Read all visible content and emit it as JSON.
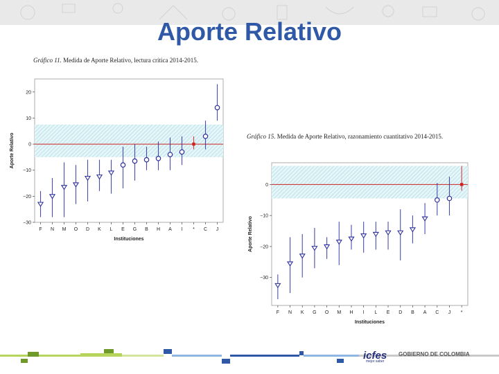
{
  "slide": {
    "title": "Aporte Relativo",
    "footer": {
      "logo_icfes": "icfes",
      "logo_icfes_sub": "mejor saber",
      "logo_gobierno": "GOBIERNO DE COLOMBIA"
    },
    "colors": {
      "title": "#2f59a6",
      "series": "#2b2f9c",
      "reference": "#cc2222",
      "band": "#a9dde6"
    }
  },
  "chart_data": [
    {
      "type": "scatter",
      "caption_italic": "Gráfico 11.",
      "caption_rest": " Medida de Aporte Relativo, lectura crítica 2014-2015.",
      "xlabel": "Instituciones",
      "ylabel": "Aporte Relativo",
      "ylim": [
        -30,
        25
      ],
      "yticks": [
        20,
        10,
        0,
        -10,
        -20,
        -30
      ],
      "band": [
        -5,
        7.5
      ],
      "reference_line": 0,
      "categories": [
        "F",
        "N",
        "M",
        "O",
        "D",
        "K",
        "L",
        "E",
        "G",
        "B",
        "H",
        "A",
        "I",
        "*",
        "C",
        "J"
      ],
      "points": [
        {
          "x": "F",
          "y": -23,
          "low": -28,
          "high": -18,
          "marker": "triangle"
        },
        {
          "x": "N",
          "y": -20,
          "low": -28,
          "high": -13,
          "marker": "triangle"
        },
        {
          "x": "M",
          "y": -16.5,
          "low": -28,
          "high": -7,
          "marker": "triangle"
        },
        {
          "x": "O",
          "y": -15.5,
          "low": -23,
          "high": -8,
          "marker": "triangle"
        },
        {
          "x": "D",
          "y": -13,
          "low": -22,
          "high": -6,
          "marker": "triangle"
        },
        {
          "x": "K",
          "y": -12.5,
          "low": -18,
          "high": -6,
          "marker": "triangle"
        },
        {
          "x": "L",
          "y": -11,
          "low": -19,
          "high": -6,
          "marker": "triangle"
        },
        {
          "x": "E",
          "y": -8,
          "low": -17,
          "high": -1,
          "marker": "circle"
        },
        {
          "x": "G",
          "y": -6.5,
          "low": -14,
          "high": 0,
          "marker": "circle"
        },
        {
          "x": "B",
          "y": -6,
          "low": -10,
          "high": -1,
          "marker": "circle"
        },
        {
          "x": "H",
          "y": -5.5,
          "low": -10,
          "high": 1,
          "marker": "circle"
        },
        {
          "x": "A",
          "y": -4,
          "low": -10,
          "high": 2.5,
          "marker": "circle"
        },
        {
          "x": "I",
          "y": -3,
          "low": -8,
          "high": 3,
          "marker": "circle"
        },
        {
          "x": "*",
          "y": 0,
          "low": -2,
          "high": 3,
          "marker": "square"
        },
        {
          "x": "C",
          "y": 3,
          "low": -2,
          "high": 9,
          "marker": "circle"
        },
        {
          "x": "J",
          "y": 14,
          "low": 9,
          "high": 23,
          "marker": "circle"
        }
      ]
    },
    {
      "type": "scatter",
      "caption_italic": "Gráfico 15.",
      "caption_rest": " Medida de Aporte Relativo, razonamiento cuantitativo 2014-2015.",
      "xlabel": "Instituciones",
      "ylabel": "Aporte Relativo",
      "ylim": [
        -39,
        7
      ],
      "yticks": [
        0,
        -10,
        -20,
        -30
      ],
      "band": [
        -4.5,
        6
      ],
      "reference_line": 0,
      "categories": [
        "F",
        "N",
        "K",
        "G",
        "O",
        "M",
        "H",
        "I",
        "L",
        "E",
        "D",
        "B",
        "A",
        "C",
        "J",
        "*"
      ],
      "points": [
        {
          "x": "F",
          "y": -32.5,
          "low": -37,
          "high": -29,
          "marker": "triangle"
        },
        {
          "x": "N",
          "y": -25.5,
          "low": -35,
          "high": -17,
          "marker": "triangle"
        },
        {
          "x": "K",
          "y": -23,
          "low": -30,
          "high": -16,
          "marker": "triangle"
        },
        {
          "x": "G",
          "y": -20.5,
          "low": -27,
          "high": -14,
          "marker": "triangle"
        },
        {
          "x": "O",
          "y": -20,
          "low": -24,
          "high": -17,
          "marker": "triangle"
        },
        {
          "x": "M",
          "y": -18.5,
          "low": -26,
          "high": -12,
          "marker": "triangle"
        },
        {
          "x": "H",
          "y": -17.5,
          "low": -21,
          "high": -13,
          "marker": "triangle"
        },
        {
          "x": "I",
          "y": -16.5,
          "low": -22,
          "high": -12,
          "marker": "triangle"
        },
        {
          "x": "L",
          "y": -16,
          "low": -21,
          "high": -12,
          "marker": "triangle"
        },
        {
          "x": "E",
          "y": -15.5,
          "low": -21,
          "high": -12,
          "marker": "triangle"
        },
        {
          "x": "D",
          "y": -15.5,
          "low": -24.5,
          "high": -8,
          "marker": "triangle"
        },
        {
          "x": "B",
          "y": -14.5,
          "low": -19,
          "high": -10,
          "marker": "triangle"
        },
        {
          "x": "A",
          "y": -11,
          "low": -16,
          "high": -6,
          "marker": "triangle"
        },
        {
          "x": "C",
          "y": -5,
          "low": -10,
          "high": 0.5,
          "marker": "circle"
        },
        {
          "x": "J",
          "y": -4.5,
          "low": -10,
          "high": 2.5,
          "marker": "circle"
        },
        {
          "x": "*",
          "y": 0,
          "low": -2,
          "high": 6,
          "marker": "square"
        }
      ]
    }
  ]
}
